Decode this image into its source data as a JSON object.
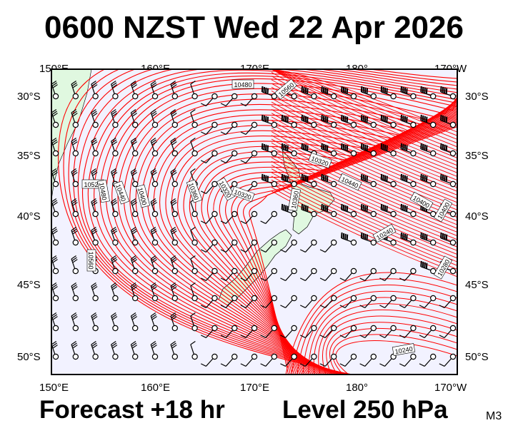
{
  "title": "0600 NZST Wed 22 Apr 2026",
  "footer": {
    "forecast": "Forecast +18 hr",
    "level": "Level 250 hPa",
    "model": "M3"
  },
  "axes": {
    "lon_labels": [
      "150°E",
      "160°E",
      "170°E",
      "180°",
      "170°W"
    ],
    "lat_labels": [
      "30°S",
      "35°S",
      "40°S",
      "45°S",
      "50°S"
    ]
  },
  "contour_labels": [
    "10480",
    "10560",
    "10520",
    "10480",
    "10440",
    "10400",
    "10360",
    "10320",
    "10320",
    "10360",
    "10320",
    "10440",
    "10400",
    "10240",
    "10280",
    "10560",
    "10400",
    "10240"
  ],
  "colors": {
    "contour": "#ff0000",
    "sea": "#f2f2ff",
    "land": "#e0f8e0",
    "barb": "#000000"
  }
}
